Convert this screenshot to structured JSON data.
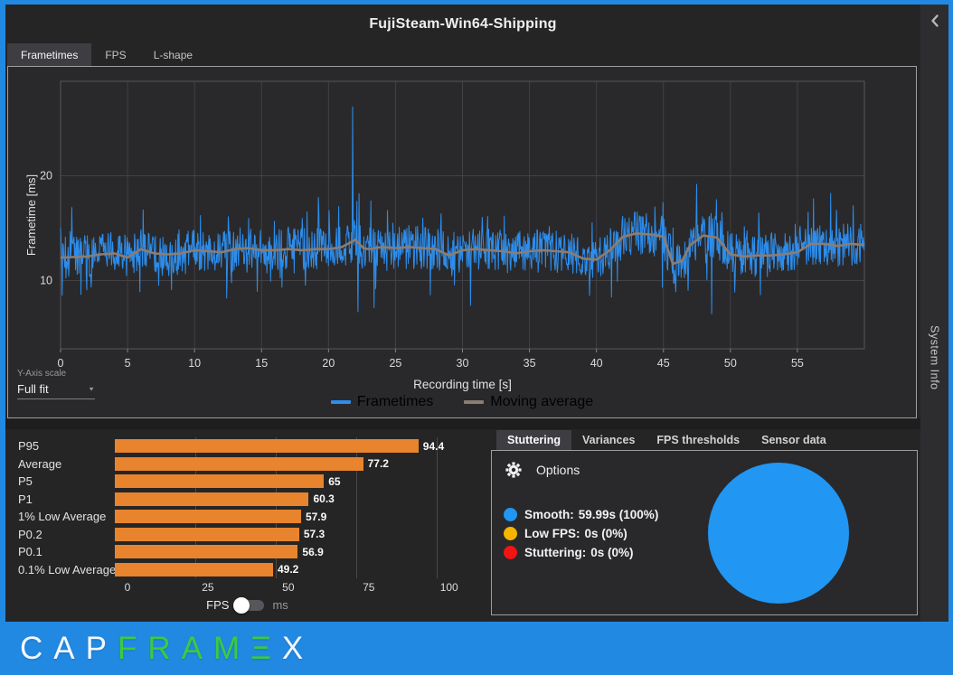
{
  "title": "FujiSteam-Win64-Shipping",
  "main_tabs": [
    {
      "label": "Frametimes",
      "active": true
    },
    {
      "label": "FPS",
      "active": false
    },
    {
      "label": "L-shape",
      "active": false
    }
  ],
  "y_axis_scale": {
    "label": "Y-Axis scale",
    "value": "Full fit"
  },
  "legend": [
    {
      "label": "Frametimes",
      "color": "#2D8DEC"
    },
    {
      "label": "Moving average",
      "color": "#8B7D73"
    }
  ],
  "unit_toggle": {
    "left": "FPS",
    "right": "ms",
    "state": "FPS"
  },
  "analysis_tabs": [
    {
      "label": "Stuttering",
      "active": true
    },
    {
      "label": "Variances",
      "active": false
    },
    {
      "label": "FPS thresholds",
      "active": false
    },
    {
      "label": "Sensor data",
      "active": false
    }
  ],
  "options_label": "Options",
  "stutter_legend": [
    {
      "label": "Smooth:",
      "value": "59.99s (100%)",
      "color": "#2196F3"
    },
    {
      "label": "Low FPS:",
      "value": "0s (0%)",
      "color": "#F5B500"
    },
    {
      "label": "Stuttering:",
      "value": "0s (0%)",
      "color": "#F21313"
    }
  ],
  "sidebar": {
    "title": "System Info"
  },
  "footer_logo": [
    {
      "text": "CAP",
      "color": "#F2F8FF"
    },
    {
      "text": "FRAM",
      "color": "#3CCB3C"
    },
    {
      "text": "Ξ",
      "color": "#3CCB3C"
    },
    {
      "text": "X",
      "color": "#F2F8FF"
    }
  ],
  "colors": {
    "accent_blue": "#2289E2",
    "frametime_line": "#2D8DEC",
    "moving_average_line": "#8B7D73",
    "bar_orange": "#E8842D",
    "pie_smooth": "#2196F3"
  },
  "chart_data": [
    {
      "type": "line",
      "title": "Frametimes",
      "xlabel": "Recording time [s]",
      "ylabel": "Frametime [ms]",
      "xlim": [
        0,
        60
      ],
      "ylim": [
        3.5,
        29
      ],
      "xticks": [
        0,
        5,
        10,
        15,
        20,
        25,
        30,
        35,
        40,
        45,
        50,
        55
      ],
      "yticks": [
        10,
        20
      ],
      "grid": true,
      "legend_position": "bottom",
      "series": [
        {
          "name": "Frametimes",
          "color": "#2D8DEC",
          "style": "noisy",
          "avg_ms": 12.9,
          "noise_ms": 2.1,
          "spike_chance": 0.12,
          "spike_extra_ms": 3.4,
          "seed": 20211,
          "samples_per_second": 25,
          "spikes": [
            [
              5.9,
              8.9
            ],
            [
              12.4,
              8.3
            ],
            [
              21.8,
              26.6
            ],
            [
              22.2,
              7.0
            ],
            [
              23.4,
              7.4
            ],
            [
              30.6,
              7.6
            ],
            [
              41.1,
              8.4
            ],
            [
              45.9,
              8.9
            ],
            [
              48.6,
              6.8
            ]
          ]
        },
        {
          "name": "Moving average",
          "color": "#8B7D73",
          "points": [
            [
              0,
              12.2
            ],
            [
              2,
              12.3
            ],
            [
              3,
              12.5
            ],
            [
              4,
              12.6
            ],
            [
              5,
              12.2
            ],
            [
              6,
              13.0
            ],
            [
              7,
              12.6
            ],
            [
              8,
              12.5
            ],
            [
              9,
              12.6
            ],
            [
              10,
              12.9
            ],
            [
              11,
              12.8
            ],
            [
              12,
              12.7
            ],
            [
              13,
              13.0
            ],
            [
              14,
              13.1
            ],
            [
              15,
              12.9
            ],
            [
              16,
              12.9
            ],
            [
              17,
              13.0
            ],
            [
              18,
              12.9
            ],
            [
              19,
              13.0
            ],
            [
              20,
              13.0
            ],
            [
              21,
              13.2
            ],
            [
              22,
              13.9
            ],
            [
              22.6,
              13.1
            ],
            [
              23,
              13.0
            ],
            [
              24,
              13.2
            ],
            [
              25,
              13.1
            ],
            [
              26,
              13.2
            ],
            [
              27,
              13.1
            ],
            [
              28,
              13.0
            ],
            [
              29,
              12.4
            ],
            [
              30,
              12.9
            ],
            [
              31,
              13.0
            ],
            [
              32,
              12.9
            ],
            [
              33,
              12.8
            ],
            [
              34,
              12.6
            ],
            [
              35,
              12.8
            ],
            [
              36,
              12.9
            ],
            [
              37,
              12.8
            ],
            [
              38,
              12.7
            ],
            [
              39,
              12.1
            ],
            [
              40,
              12.0
            ],
            [
              41,
              12.9
            ],
            [
              42,
              14.2
            ],
            [
              43,
              14.5
            ],
            [
              44,
              14.4
            ],
            [
              45,
              14.2
            ],
            [
              45.7,
              11.6
            ],
            [
              46.4,
              11.9
            ],
            [
              47,
              13.4
            ],
            [
              48,
              14.3
            ],
            [
              49,
              14.1
            ],
            [
              50,
              12.5
            ],
            [
              51,
              12.3
            ],
            [
              52,
              12.4
            ],
            [
              53,
              12.4
            ],
            [
              54,
              12.5
            ],
            [
              55,
              12.7
            ],
            [
              56,
              13.5
            ],
            [
              57,
              13.5
            ],
            [
              58,
              13.3
            ],
            [
              59,
              13.5
            ],
            [
              60,
              13.4
            ]
          ]
        }
      ]
    },
    {
      "type": "bar",
      "orientation": "horizontal",
      "unit": "FPS",
      "categories": [
        "P95",
        "Average",
        "P5",
        "P1",
        "1% Low Average",
        "P0.2",
        "P0.1",
        "0.1% Low Average"
      ],
      "values": [
        94.4,
        77.2,
        65,
        60.3,
        57.9,
        57.3,
        56.9,
        49.2
      ],
      "bar_color": "#E8842D",
      "xticks": [
        0,
        25,
        50,
        75,
        100
      ],
      "xlim": [
        0,
        110.2
      ]
    },
    {
      "type": "pie",
      "title": "Stuttering analysis",
      "slices": [
        {
          "label": "Smooth",
          "seconds": 59.99,
          "percent": 100,
          "color": "#2196F3"
        },
        {
          "label": "Low FPS",
          "seconds": 0,
          "percent": 0,
          "color": "#F5B500"
        },
        {
          "label": "Stuttering",
          "seconds": 0,
          "percent": 0,
          "color": "#F21313"
        }
      ]
    }
  ]
}
